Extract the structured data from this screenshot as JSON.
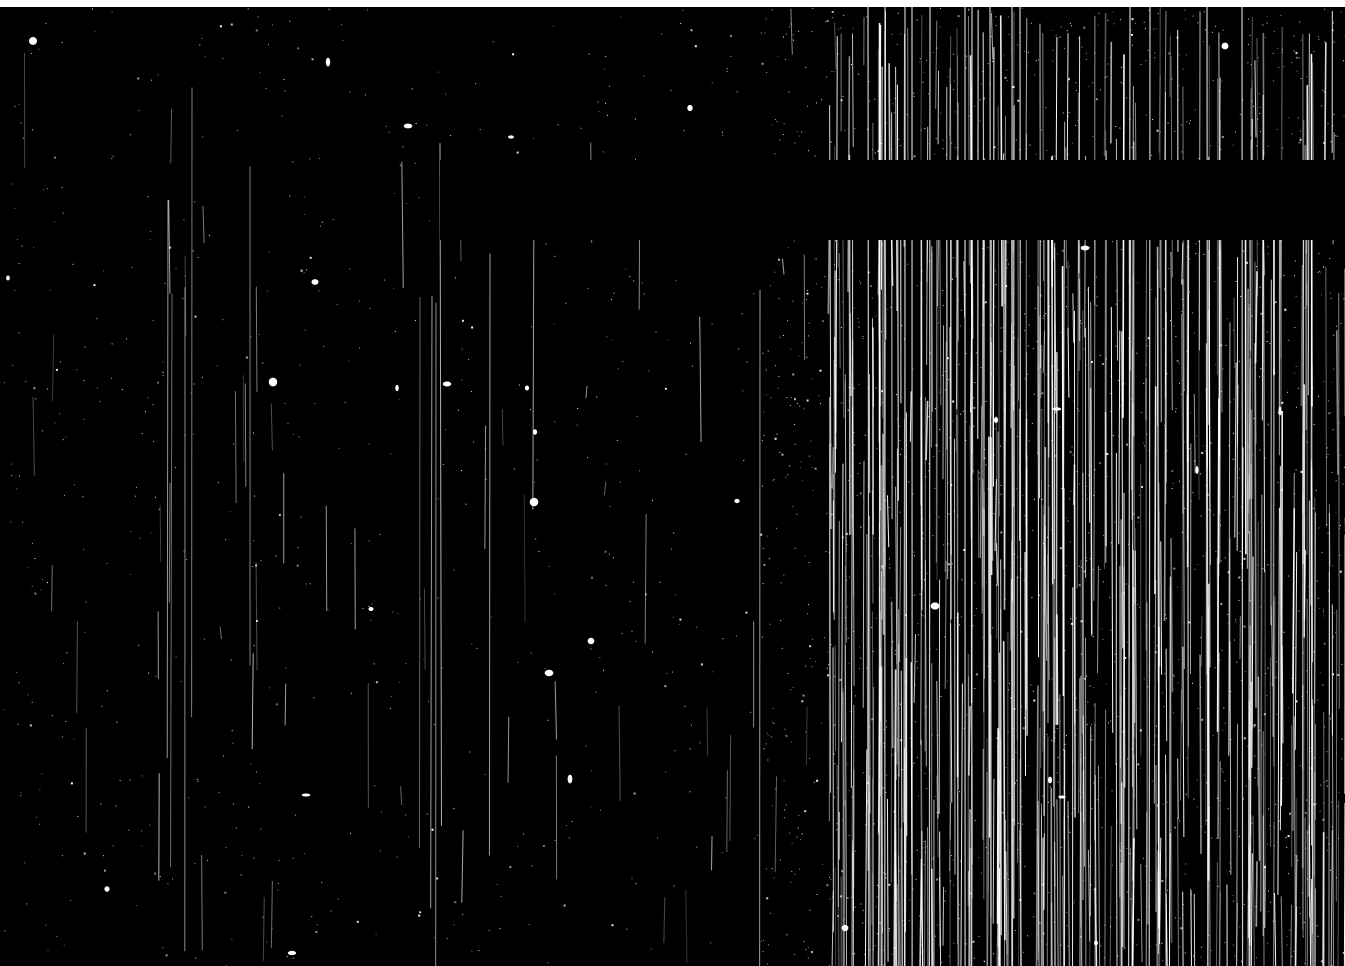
{
  "image": {
    "kind": "binarized-texture",
    "background_color": "#000000",
    "foreground_color": "#ffffff",
    "description_tags": [
      "vertical-streaks",
      "speckle-noise",
      "horizontal-dark-band"
    ]
  }
}
